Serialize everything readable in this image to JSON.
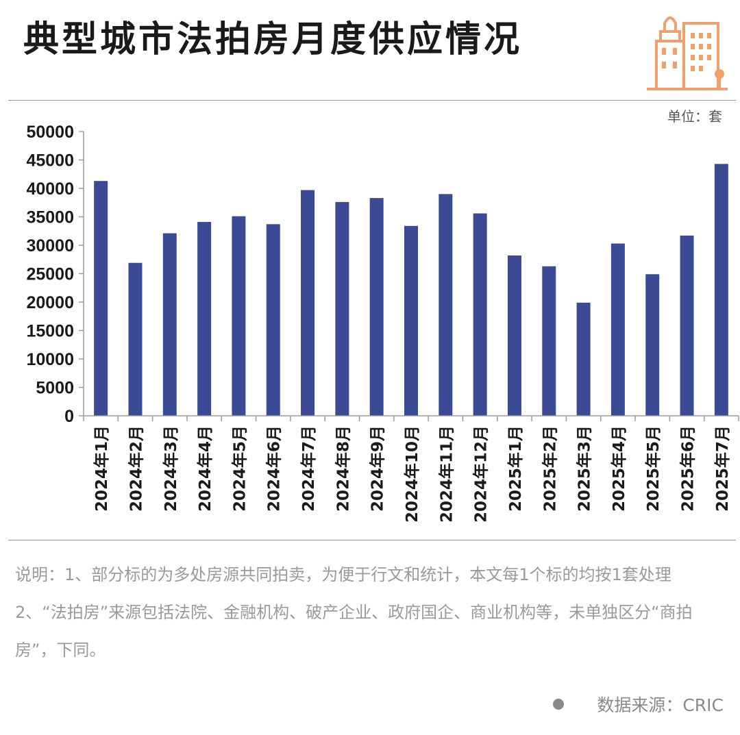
{
  "header": {
    "title": "典型城市法拍房月度供应情况",
    "unit": "单位：套"
  },
  "icons": {
    "logo": "city-buildings-icon",
    "logo_color": "#f0a06a"
  },
  "colors": {
    "bar": "#3b4a94",
    "axis": "#9a9a9a",
    "text": "#1a1a1a"
  },
  "chart_data": {
    "type": "bar",
    "title": "典型城市法拍房月度供应情况",
    "xlabel": "",
    "ylabel": "",
    "unit": "单位：套",
    "ylim": [
      0,
      50000
    ],
    "yticks": [
      0,
      5000,
      10000,
      15000,
      20000,
      25000,
      30000,
      35000,
      40000,
      45000,
      50000
    ],
    "grid": false,
    "categories": [
      "2024年1月",
      "2024年2月",
      "2024年3月",
      "2024年4月",
      "2024年5月",
      "2024年6月",
      "2024年7月",
      "2024年8月",
      "2024年9月",
      "2024年10月",
      "2024年11月",
      "2024年12月",
      "2025年1月",
      "2025年2月",
      "2025年3月",
      "2025年4月",
      "2025年5月",
      "2025年6月",
      "2025年7月"
    ],
    "values": [
      41300,
      26900,
      32100,
      34100,
      35100,
      33700,
      39700,
      37600,
      38300,
      33400,
      39000,
      35600,
      28200,
      26300,
      19900,
      30300,
      24900,
      31700,
      44300
    ]
  },
  "notes": {
    "line1": "说明：1、部分标的为多处房源共同拍卖，为便于行文和统计，本文每1个标的均按1套处理",
    "line2": "2、“法拍房”来源包括法院、金融机构、破产企业、政府国企、商业机构等，未单独区分“商拍房”，下同。"
  },
  "source": {
    "label": "数据来源：CRIC"
  }
}
